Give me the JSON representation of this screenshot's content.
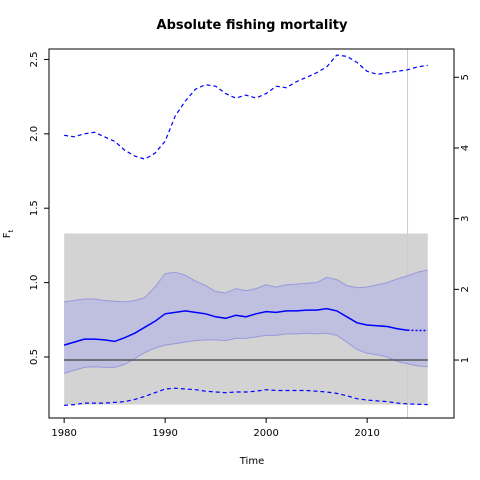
{
  "chart_data": {
    "type": "line",
    "title": "Absolute fishing mortality",
    "xlabel": "Time",
    "ylabel": "F",
    "ylabel_sub": "t",
    "xlim": [
      1978.5,
      2018.6
    ],
    "ylim": [
      0.09,
      2.57
    ],
    "y2lim": [
      0.18,
      5.4
    ],
    "x_ticks": [
      1980,
      1990,
      2000,
      2010
    ],
    "y_ticks": [
      0.5,
      1.0,
      1.5,
      2.0,
      2.5
    ],
    "y_tick_labels": [
      "0.5",
      "1.0",
      "1.5",
      "2.0",
      "2.5"
    ],
    "y2_ticks": [
      1,
      2,
      3,
      4,
      5
    ],
    "y2_tick_labels": [
      "1",
      "2",
      "3",
      "4",
      "5"
    ],
    "reference_line": 0.48,
    "reference_band": [
      0.18,
      1.33
    ],
    "vertical_line_x": 2014,
    "x": [
      1980,
      1981,
      1982,
      1983,
      1984,
      1985,
      1986,
      1987,
      1988,
      1989,
      1990,
      1991,
      1992,
      1993,
      1994,
      1995,
      1996,
      1997,
      1998,
      1999,
      2000,
      2001,
      2002,
      2003,
      2004,
      2005,
      2006,
      2007,
      2008,
      2009,
      2010,
      2011,
      2012,
      2013,
      2014
    ],
    "series": [
      {
        "role": "estimate",
        "color": "#0000ff",
        "values": [
          0.58,
          0.6,
          0.62,
          0.62,
          0.615,
          0.605,
          0.63,
          0.66,
          0.7,
          0.74,
          0.79,
          0.8,
          0.81,
          0.8,
          0.79,
          0.77,
          0.76,
          0.78,
          0.77,
          0.79,
          0.805,
          0.8,
          0.81,
          0.81,
          0.815,
          0.815,
          0.825,
          0.81,
          0.77,
          0.73,
          0.715,
          0.71,
          0.705,
          0.69,
          0.68
        ]
      },
      {
        "role": "ci-upper",
        "color": "#9999dd",
        "values": [
          0.87,
          0.88,
          0.89,
          0.89,
          0.88,
          0.875,
          0.87,
          0.88,
          0.9,
          0.97,
          1.06,
          1.07,
          1.05,
          1.01,
          0.98,
          0.94,
          0.93,
          0.96,
          0.945,
          0.96,
          0.985,
          0.97,
          0.985,
          0.99,
          0.995,
          1.0,
          1.035,
          1.02,
          0.98,
          0.965,
          0.97,
          0.985,
          1.0,
          1.025,
          1.045
        ]
      },
      {
        "role": "ci-lower",
        "color": "#9999dd",
        "values": [
          0.39,
          0.41,
          0.43,
          0.435,
          0.43,
          0.43,
          0.45,
          0.49,
          0.53,
          0.56,
          0.58,
          0.59,
          0.6,
          0.61,
          0.615,
          0.615,
          0.61,
          0.625,
          0.625,
          0.635,
          0.645,
          0.645,
          0.655,
          0.655,
          0.66,
          0.655,
          0.66,
          0.645,
          0.6,
          0.55,
          0.525,
          0.515,
          0.5,
          0.47,
          0.455
        ]
      },
      {
        "role": "dashed-upper",
        "color": "#0000ff",
        "values": [
          1.99,
          1.98,
          2.0,
          2.01,
          1.98,
          1.95,
          1.89,
          1.85,
          1.83,
          1.87,
          1.95,
          2.12,
          2.22,
          2.3,
          2.33,
          2.32,
          2.27,
          2.24,
          2.26,
          2.24,
          2.27,
          2.32,
          2.31,
          2.35,
          2.38,
          2.41,
          2.45,
          2.53,
          2.52,
          2.48,
          2.42,
          2.4,
          2.41,
          2.42,
          2.43
        ]
      },
      {
        "role": "dashed-lower",
        "color": "#0000ff",
        "values": [
          0.175,
          0.18,
          0.19,
          0.19,
          0.19,
          0.195,
          0.2,
          0.215,
          0.235,
          0.26,
          0.285,
          0.29,
          0.285,
          0.28,
          0.27,
          0.265,
          0.26,
          0.265,
          0.265,
          0.27,
          0.28,
          0.275,
          0.275,
          0.275,
          0.275,
          0.27,
          0.265,
          0.255,
          0.24,
          0.22,
          0.21,
          0.205,
          0.2,
          0.19,
          0.185
        ]
      }
    ],
    "projection": {
      "x": [
        2014,
        2015,
        2016
      ],
      "estimate": [
        0.68,
        0.678,
        0.678
      ],
      "ci_upper": [
        1.045,
        1.07,
        1.085
      ],
      "ci_lower": [
        0.455,
        0.44,
        0.435
      ],
      "dashed_upper": [
        2.43,
        2.45,
        2.46
      ],
      "dashed_lower": [
        0.185,
        0.182,
        0.18
      ]
    },
    "colors": {
      "band": "#d3d3d3",
      "ci_fill": "#bbbbe0",
      "estimate": "#0000ff",
      "reference_line": "#555555",
      "vertical_line": "#cccccc"
    },
    "grid": false,
    "legend": "none"
  }
}
